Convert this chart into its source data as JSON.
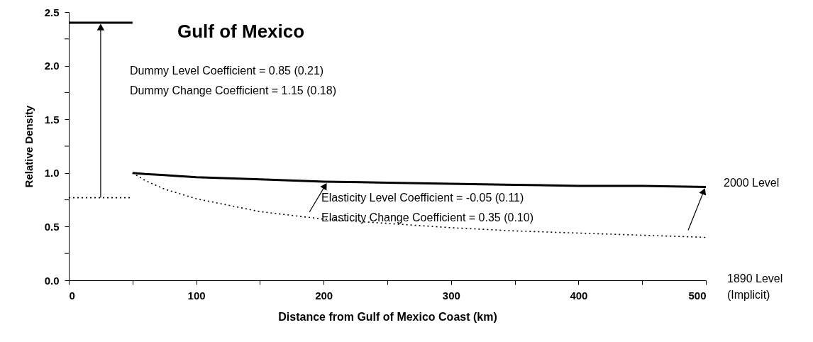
{
  "chart_data": {
    "type": "line",
    "title": "Gulf of Mexico",
    "xlabel": "Distance from Gulf of Mexico Coast (km)",
    "ylabel": "Relative Density",
    "x": [
      0,
      50,
      50,
      60,
      75,
      100,
      150,
      200,
      250,
      300,
      350,
      400,
      450,
      500
    ],
    "series": [
      {
        "name": "2000 Level",
        "color": "#000000",
        "line_style": "solid",
        "values": [
          2.4,
          2.4,
          1.0,
          0.99,
          0.98,
          0.96,
          0.94,
          0.92,
          0.91,
          0.9,
          0.89,
          0.88,
          0.88,
          0.87
        ]
      },
      {
        "name": "1890 Level\n(Implicit)",
        "color": "#000000",
        "line_style": "dotted",
        "values": [
          0.77,
          0.77,
          1.0,
          0.93,
          0.85,
          0.76,
          0.64,
          0.57,
          0.53,
          0.49,
          0.46,
          0.44,
          0.42,
          0.4
        ]
      }
    ],
    "annotations": [
      "Dummy Level Coefficient = 0.85 (0.21)",
      "Dummy Change Coefficient = 1.15 (0.18)",
      "Elasticity Level Coefficient = -0.05 (0.11)",
      "Elasticity Change Coefficient = 0.35 (0.10)"
    ],
    "xlim": [
      0,
      500
    ],
    "ylim": [
      0,
      2.5
    ],
    "xticks": [
      0,
      {
        "value": 50,
        "label": null
      },
      100,
      {
        "value": 150,
        "label": null
      },
      200,
      {
        "value": 250,
        "label": null
      },
      300,
      {
        "value": 350,
        "label": null
      },
      400,
      {
        "value": 450,
        "label": null
      },
      500
    ],
    "yticks": [
      {
        "value": 0,
        "label": "0.0"
      },
      {
        "value": 0.25,
        "label": null
      },
      {
        "value": 0.5,
        "label": "0.5"
      },
      {
        "value": 0.75,
        "label": null
      },
      {
        "value": 1.0,
        "label": "1.0"
      },
      {
        "value": 1.25,
        "label": null
      },
      {
        "value": 1.5,
        "label": "1.5"
      },
      {
        "value": 1.75,
        "label": null
      },
      {
        "value": 2.0,
        "label": "2.0"
      },
      {
        "value": 2.25,
        "label": null
      },
      {
        "value": 2.5,
        "label": "2.5"
      }
    ],
    "grid": false,
    "marker": "none"
  }
}
